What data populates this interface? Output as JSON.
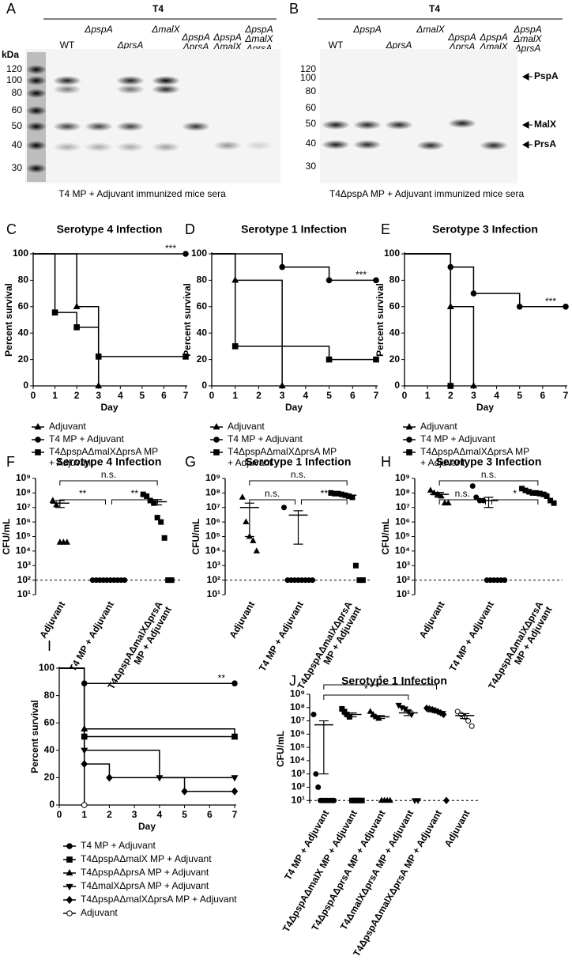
{
  "blots": [
    {
      "letter": "A",
      "header": "T4",
      "kda_label": "kDa",
      "lanes": [
        [
          "WT"
        ],
        [
          "ΔpspA"
        ],
        [
          "ΔprsA"
        ],
        [
          "ΔmalX"
        ],
        [
          "ΔpspA",
          "ΔprsA"
        ],
        [
          "ΔpspA",
          "ΔmalX"
        ],
        [
          "ΔpspA",
          "ΔmalX",
          "ΔprsA"
        ]
      ],
      "kda_markers": [
        120,
        100,
        80,
        60,
        50,
        40,
        30
      ],
      "caption": "T4 MP + Adjuvant immunized mice sera"
    },
    {
      "letter": "B",
      "header": "T4",
      "lanes": [
        [
          "WT"
        ],
        [
          "ΔpspA"
        ],
        [
          "ΔprsA"
        ],
        [
          "ΔmalX"
        ],
        [
          "ΔpspA",
          "ΔprsA"
        ],
        [
          "ΔpspA",
          "ΔmalX"
        ],
        [
          "ΔpspA",
          "ΔmalX",
          "ΔprsA"
        ]
      ],
      "kda_markers": [
        120,
        100,
        80,
        60,
        50,
        40,
        30
      ],
      "band_labels": [
        "PspA",
        "MalX",
        "PrsA"
      ],
      "caption": "T4ΔpspA MP + Adjuvant immunized mice sera"
    }
  ],
  "chart_data": [
    {
      "panel": "C",
      "type": "survival",
      "title": "Serotype 4 Infection",
      "xlabel": "Day",
      "ylabel": "Percent survival",
      "xlim": [
        0,
        7
      ],
      "xticks": [
        0,
        1,
        2,
        3,
        4,
        5,
        6,
        7
      ],
      "ylim": [
        0,
        100
      ],
      "yticks": [
        0,
        20,
        40,
        60,
        80,
        100
      ],
      "annotation": "***",
      "legend": true,
      "series": [
        {
          "name": "Adjuvant",
          "marker": "triangle",
          "color": "#000000",
          "x": [
            0,
            2,
            3
          ],
          "values": [
            100,
            60,
            0
          ]
        },
        {
          "name": "T4 MP + Adjuvant",
          "marker": "circle",
          "color": "#000000",
          "x": [
            0,
            7
          ],
          "values": [
            100,
            100
          ]
        },
        {
          "name": [
            "T4ΔpspAΔmalXΔprsA MP",
            "+ Adjuvant"
          ],
          "marker": "square",
          "color": "#000000",
          "x": [
            0,
            1,
            2,
            3,
            7
          ],
          "values": [
            100,
            55.6,
            44.4,
            22.2,
            22.2
          ]
        }
      ]
    },
    {
      "panel": "D",
      "type": "survival",
      "title": "Serotype 1 Infection",
      "xlabel": "Day",
      "ylabel": "Percent survival",
      "xlim": [
        0,
        7
      ],
      "xticks": [
        0,
        1,
        2,
        3,
        4,
        5,
        6,
        7
      ],
      "ylim": [
        0,
        100
      ],
      "yticks": [
        0,
        20,
        40,
        60,
        80,
        100
      ],
      "annotation": "***",
      "legend": true,
      "series": [
        {
          "name": "Adjuvant",
          "marker": "triangle",
          "color": "#000000",
          "x": [
            0,
            1,
            3
          ],
          "values": [
            100,
            80,
            0
          ]
        },
        {
          "name": "T4 MP + Adjuvant",
          "marker": "circle",
          "color": "#000000",
          "x": [
            0,
            3,
            5,
            7
          ],
          "values": [
            100,
            90,
            80,
            80
          ]
        },
        {
          "name": [
            "T4ΔpspAΔmalXΔprsA MP",
            "+ Adjuvant"
          ],
          "marker": "square",
          "color": "#000000",
          "x": [
            0,
            1,
            5,
            7
          ],
          "values": [
            100,
            30,
            20,
            20
          ]
        }
      ]
    },
    {
      "panel": "E",
      "type": "survival",
      "title": "Serotype 3 Infection",
      "xlabel": "Day",
      "ylabel": "Percent survival",
      "xlim": [
        0,
        7
      ],
      "xticks": [
        0,
        1,
        2,
        3,
        4,
        5,
        6,
        7
      ],
      "ylim": [
        0,
        100
      ],
      "yticks": [
        0,
        20,
        40,
        60,
        80,
        100
      ],
      "annotation": "***",
      "legend": true,
      "series": [
        {
          "name": "Adjuvant",
          "marker": "triangle",
          "color": "#000000",
          "x": [
            0,
            2,
            3
          ],
          "values": [
            100,
            60,
            0
          ]
        },
        {
          "name": "T4 MP + Adjuvant",
          "marker": "circle",
          "color": "#000000",
          "x": [
            0,
            2,
            3,
            5,
            7
          ],
          "values": [
            100,
            90,
            70,
            60,
            60
          ]
        },
        {
          "name": [
            "T4ΔpspAΔmalXΔprsA MP",
            "+ Adjuvant"
          ],
          "marker": "square",
          "color": "#000000",
          "x": [
            0,
            2
          ],
          "values": [
            100,
            0
          ]
        }
      ]
    },
    {
      "panel": "F",
      "type": "dot",
      "title": "Serotype 4 Infection",
      "ylabel": "CFU/mL",
      "log": true,
      "ylim": [
        10,
        1000000000.0
      ],
      "yticks": [
        {
          "value": 10,
          "label": "10¹"
        },
        {
          "value": 100,
          "label": "10²"
        },
        {
          "value": 1000,
          "label": "10³"
        },
        {
          "value": 10000,
          "label": "10⁴"
        },
        {
          "value": 100000,
          "label": "10⁵"
        },
        {
          "value": 1000000,
          "label": "10⁶"
        },
        {
          "value": 10000000,
          "label": "10⁷"
        },
        {
          "value": 100000000,
          "label": "10⁸"
        },
        {
          "value": 1000000000,
          "label": "10⁹"
        }
      ],
      "threshold": 100,
      "categories": [
        "Adjuvant",
        "T4 MP + Adjuvant",
        [
          "T4ΔpspAΔmalXΔprsA",
          "MP + Adjuvant"
        ]
      ],
      "markers": [
        "triangle",
        "circle",
        "square"
      ],
      "points": [
        [
          30000000,
          15000000,
          40000,
          40000,
          40000
        ],
        [
          100,
          100,
          100,
          100,
          100,
          100,
          100,
          100,
          100,
          100
        ],
        [
          80000000,
          60000000,
          30000000,
          20000000,
          2000000,
          1000000,
          80000,
          100,
          100
        ]
      ],
      "means": [
        20000000,
        100,
        25000000
      ],
      "errors": [
        10000000,
        0,
        10000000
      ],
      "comparisons": [
        {
          "pair": [
            0,
            1
          ],
          "label": "**"
        },
        {
          "pair": [
            1,
            2
          ],
          "label": "**"
        },
        {
          "pair": [
            0,
            2
          ],
          "label": "n.s."
        }
      ]
    },
    {
      "panel": "G",
      "type": "dot",
      "title": "Serotype 1 Infection",
      "ylabel": "CFU/mL",
      "log": true,
      "ylim": [
        10,
        1000000000.0
      ],
      "yticks": [
        {
          "value": 10,
          "label": "10¹"
        },
        {
          "value": 100,
          "label": "10²"
        },
        {
          "value": 1000,
          "label": "10³"
        },
        {
          "value": 10000,
          "label": "10⁴"
        },
        {
          "value": 100000,
          "label": "10⁵"
        },
        {
          "value": 1000000,
          "label": "10⁶"
        },
        {
          "value": 10000000,
          "label": "10⁷"
        },
        {
          "value": 100000000,
          "label": "10⁸"
        },
        {
          "value": 1000000000,
          "label": "10⁹"
        }
      ],
      "threshold": 100,
      "categories": [
        "Adjuvant",
        "T4 MP + Adjuvant",
        [
          "T4ΔpspAΔmalXΔprsA",
          "MP + Adjuvant"
        ]
      ],
      "markers": [
        "triangle",
        "circle",
        "square"
      ],
      "points": [
        [
          50000000,
          1000000,
          100000,
          50000,
          10000
        ],
        [
          10000000,
          100,
          100,
          100,
          100,
          100,
          100,
          100,
          100
        ],
        [
          100000000,
          90000000,
          90000000,
          80000000,
          70000000,
          60000000,
          50000000,
          1000,
          100,
          100
        ]
      ],
      "means": [
        10000000,
        3000000,
        70000000
      ],
      "errors": [
        9900000,
        2970000,
        15000000
      ],
      "comparisons": [
        {
          "pair": [
            0,
            1
          ],
          "label": "n.s."
        },
        {
          "pair": [
            1,
            2
          ],
          "label": "**"
        },
        {
          "pair": [
            0,
            2
          ],
          "label": "n.s."
        }
      ]
    },
    {
      "panel": "H",
      "type": "dot",
      "title": "Serotype 3 Infection",
      "ylabel": "CFU/mL",
      "log": true,
      "ylim": [
        10,
        1000000000.0
      ],
      "yticks": [
        {
          "value": 10,
          "label": "10¹"
        },
        {
          "value": 100,
          "label": "10²"
        },
        {
          "value": 1000,
          "label": "10³"
        },
        {
          "value": 10000,
          "label": "10⁴"
        },
        {
          "value": 100000,
          "label": "10⁵"
        },
        {
          "value": 1000000,
          "label": "10⁶"
        },
        {
          "value": 10000000,
          "label": "10⁷"
        },
        {
          "value": 100000000,
          "label": "10⁸"
        },
        {
          "value": 1000000000,
          "label": "10⁹"
        }
      ],
      "threshold": 100,
      "categories": [
        "Adjuvant",
        "T4 MP + Adjuvant",
        [
          "T4ΔpspAΔmalXΔprsA",
          "MP + Adjuvant"
        ]
      ],
      "markers": [
        "triangle",
        "circle",
        "square"
      ],
      "points": [
        [
          150000000,
          100000000,
          80000000,
          60000000,
          20000000,
          20000000
        ],
        [
          300000000,
          50000000,
          30000000,
          30000000,
          100,
          100,
          100,
          100,
          100,
          100
        ],
        [
          200000000,
          150000000,
          120000000,
          100000000,
          100000000,
          90000000,
          80000000,
          60000000,
          30000000,
          20000000
        ]
      ],
      "means": [
        80000000,
        30000000,
        100000000
      ],
      "errors": [
        30000000,
        20000000,
        30000000
      ],
      "comparisons": [
        {
          "pair": [
            0,
            1
          ],
          "label": "n.s."
        },
        {
          "pair": [
            1,
            2
          ],
          "label": "*"
        },
        {
          "pair": [
            0,
            2
          ],
          "label": "n.s."
        }
      ]
    },
    {
      "panel": "I",
      "type": "survival",
      "xlabel": "Day",
      "ylabel": "Percent survival",
      "xlim": [
        0,
        7
      ],
      "xticks": [
        0,
        1,
        2,
        3,
        4,
        5,
        6,
        7
      ],
      "ylim": [
        0,
        100
      ],
      "yticks": [
        0,
        20,
        40,
        60,
        80,
        100
      ],
      "annotation": "**",
      "legend": true,
      "series": [
        {
          "name": "T4 MP + Adjuvant",
          "marker": "circle",
          "color": "#000000",
          "x": [
            0,
            1,
            7
          ],
          "values": [
            100,
            88.9,
            88.9
          ]
        },
        {
          "name": "T4ΔpspAΔmalX MP + Adjuvant",
          "marker": "square",
          "color": "#000000",
          "x": [
            0,
            1,
            7
          ],
          "values": [
            100,
            50,
            50
          ]
        },
        {
          "name": "T4ΔpspAΔprsA MP + Adjuvant",
          "marker": "triangle",
          "color": "#000000",
          "x": [
            0,
            1,
            7
          ],
          "values": [
            100,
            55.6,
            50
          ]
        },
        {
          "name": "T4ΔmalXΔprsA MP + Adjuvant",
          "marker": "triangle-down",
          "color": "#000000",
          "x": [
            0,
            1,
            4,
            7
          ],
          "values": [
            100,
            40,
            20,
            20
          ]
        },
        {
          "name": "T4ΔpspAΔmalXΔprsA MP + Adjuvant",
          "marker": "diamond",
          "color": "#000000",
          "x": [
            0,
            1,
            2,
            5,
            7
          ],
          "values": [
            100,
            30,
            20,
            10,
            10
          ]
        },
        {
          "name": "Adjuvant",
          "marker": "circle-open",
          "color": "#000000",
          "x": [
            0,
            1
          ],
          "values": [
            100,
            0
          ]
        }
      ]
    },
    {
      "panel": "J",
      "type": "dot",
      "title": "Serotype 1 Infection",
      "ylabel": "CFU/mL",
      "log": true,
      "ylim": [
        6,
        1000000000.0
      ],
      "yticks": [
        {
          "value": 10,
          "label": "10¹"
        },
        {
          "value": 100,
          "label": "10²"
        },
        {
          "value": 1000,
          "label": "10³"
        },
        {
          "value": 10000,
          "label": "10⁴"
        },
        {
          "value": 100000,
          "label": "10⁵"
        },
        {
          "value": 1000000,
          "label": "10⁶"
        },
        {
          "value": 10000000,
          "label": "10⁷"
        },
        {
          "value": 100000000,
          "label": "10⁸"
        },
        {
          "value": 1000000000,
          "label": "10⁹"
        }
      ],
      "threshold": 10,
      "categories": [
        "T4 MP + Adjuvant",
        "T4ΔpspAΔmalX MP + Adjuvant",
        "T4ΔpspAΔprsA MP + Adjuvant",
        "T4ΔmalXΔprsA MP + Adjuvant",
        "T4ΔpspAΔmalXΔprsA MP + Adjuvant",
        "Adjuvant"
      ],
      "markers": [
        "circle",
        "square",
        "triangle",
        "triangle-down",
        "diamond",
        "circle-open"
      ],
      "points": [
        [
          30000000,
          1000,
          100,
          10,
          10,
          10,
          10,
          10,
          10,
          10
        ],
        [
          80000000,
          50000000,
          30000000,
          20000000,
          10,
          10,
          10,
          10,
          10
        ],
        [
          50000000,
          30000000,
          20000000,
          15000000,
          10,
          10,
          10,
          10
        ],
        [
          150000000,
          100000000,
          80000000,
          50000000,
          30000000,
          10,
          10
        ],
        [
          90000000,
          80000000,
          70000000,
          60000000,
          50000000,
          40000000,
          30000000,
          10
        ],
        [
          50000000,
          30000000,
          20000000,
          10000000,
          4000000
        ]
      ],
      "means": [
        5000000,
        30000000,
        20000000,
        40000000,
        50000000,
        25000000
      ],
      "errors": [
        4999000,
        10000000,
        5000000,
        15000000,
        8000000,
        10000000
      ],
      "comparisons": [
        {
          "pair": [
            0,
            3
          ],
          "label": "*"
        },
        {
          "pair": [
            0,
            4
          ],
          "label": "*"
        }
      ]
    }
  ]
}
